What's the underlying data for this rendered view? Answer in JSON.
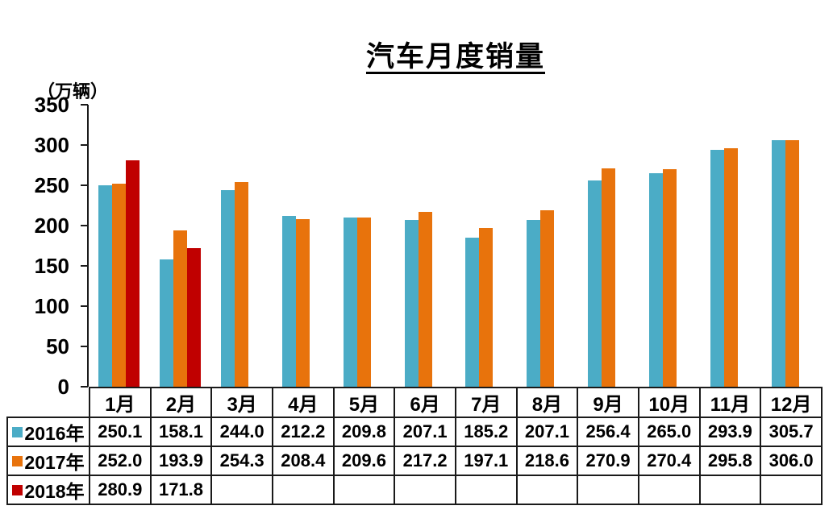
{
  "title": "汽车月度销量",
  "unit_label": "（万辆）",
  "chart_data": {
    "type": "bar",
    "title": "汽车月度销量",
    "ylabel": "（万辆）",
    "ylim": [
      0,
      350
    ],
    "yticks": [
      0,
      50,
      100,
      150,
      200,
      250,
      300,
      350
    ],
    "grid": false,
    "legend_position": "data-table-row-headers",
    "categories": [
      "1月",
      "2月",
      "3月",
      "4月",
      "5月",
      "6月",
      "7月",
      "8月",
      "9月",
      "10月",
      "11月",
      "12月"
    ],
    "series": [
      {
        "name": "2016年",
        "color": "#4BACC6",
        "values": [
          250.1,
          158.1,
          244.0,
          212.2,
          209.8,
          207.1,
          185.2,
          207.1,
          256.4,
          265.0,
          293.9,
          305.7
        ]
      },
      {
        "name": "2017年",
        "color": "#E8730C",
        "values": [
          252.0,
          193.9,
          254.3,
          208.4,
          209.6,
          217.2,
          197.1,
          218.6,
          270.9,
          270.4,
          295.8,
          306.0
        ]
      },
      {
        "name": "2018年",
        "color": "#C00000",
        "values": [
          280.9,
          171.8,
          null,
          null,
          null,
          null,
          null,
          null,
          null,
          null,
          null,
          null
        ]
      }
    ]
  }
}
